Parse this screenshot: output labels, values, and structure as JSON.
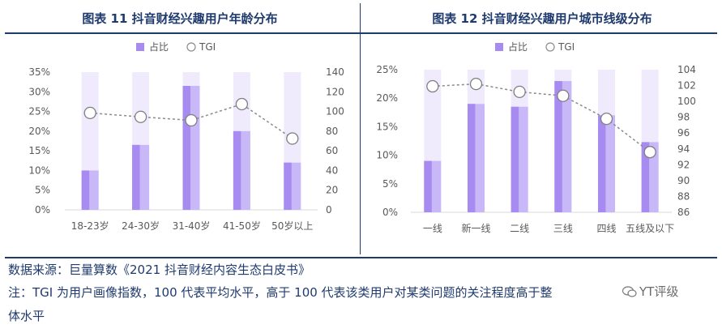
{
  "colors": {
    "bar": "#a78bf0",
    "bar_light": "#c9b8f8",
    "bar_track": "#efebfd",
    "tgi_line": "#8a8a8a",
    "text": "#595959",
    "title": "#1f3b6e"
  },
  "chart_data": [
    {
      "type": "bar",
      "title": "图表 11 抖音财经兴趣用户年龄分布",
      "categories": [
        "18-23岁",
        "24-30岁",
        "31-40岁",
        "41-50岁",
        "50岁以上"
      ],
      "series": [
        {
          "name": "占比",
          "axis": "left",
          "values": [
            10,
            16.5,
            31.5,
            20,
            12
          ]
        },
        {
          "name": "TGI",
          "axis": "right",
          "type": "line",
          "values": [
            98.5,
            94.5,
            91,
            107.5,
            72.5
          ]
        }
      ],
      "left_axis": {
        "ticks": [
          "0%",
          "5%",
          "10%",
          "15%",
          "20%",
          "25%",
          "30%",
          "35%"
        ],
        "ylim": [
          0,
          35
        ]
      },
      "right_axis": {
        "ticks": [
          "0",
          "20",
          "40",
          "60",
          "80",
          "100",
          "120",
          "140"
        ],
        "ylim": [
          0,
          140
        ]
      },
      "legend_position": "top-center"
    },
    {
      "type": "bar",
      "title": "图表 12 抖音财经兴趣用户城市线级分布",
      "categories": [
        "一线",
        "新一线",
        "二线",
        "三线",
        "四线",
        "五线及以下"
      ],
      "series": [
        {
          "name": "占比",
          "axis": "left",
          "values": [
            9,
            19,
            18.5,
            23,
            17,
            12.3
          ]
        },
        {
          "name": "TGI",
          "axis": "right",
          "type": "line",
          "values": [
            101.9,
            102.2,
            101.2,
            100.7,
            97.8,
            93.6
          ]
        }
      ],
      "left_axis": {
        "ticks": [
          "0%",
          "5%",
          "10%",
          "15%",
          "20%",
          "25%"
        ],
        "ylim": [
          0,
          25
        ]
      },
      "right_axis": {
        "ticks": [
          "86",
          "88",
          "90",
          "92",
          "94",
          "96",
          "98",
          "100",
          "102",
          "104"
        ],
        "ylim": [
          86,
          104
        ]
      },
      "legend_position": "top-center"
    }
  ],
  "notes": {
    "source": "数据来源：巨量算数《2021 抖音财经内容生态白皮书》",
    "tgi_line1": "注：TGI 为用户画像指数，100 代表平均水平，高于 100 代表该类用户对某类问题的关注程度高于整",
    "tgi_line2": "体水平"
  },
  "watermark": {
    "icon": "wechat-icon",
    "text": "YT评级"
  }
}
